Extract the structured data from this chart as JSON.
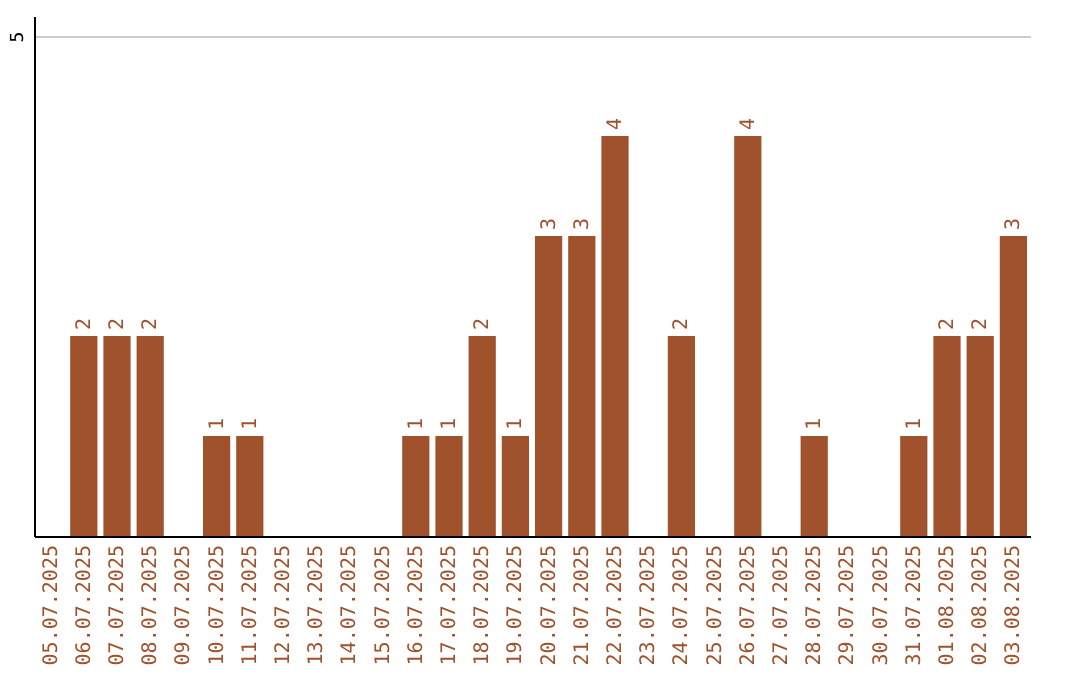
{
  "chart_data": {
    "type": "bar",
    "categories": [
      "05.07.2025",
      "06.07.2025",
      "07.07.2025",
      "08.07.2025",
      "09.07.2025",
      "10.07.2025",
      "11.07.2025",
      "12.07.2025",
      "13.07.2025",
      "14.07.2025",
      "15.07.2025",
      "16.07.2025",
      "17.07.2025",
      "18.07.2025",
      "19.07.2025",
      "20.07.2025",
      "21.07.2025",
      "22.07.2025",
      "23.07.2025",
      "24.07.2025",
      "25.07.2025",
      "26.07.2025",
      "27.07.2025",
      "28.07.2025",
      "29.07.2025",
      "30.07.2025",
      "31.07.2025",
      "01.08.2025",
      "02.08.2025",
      "03.08.2025"
    ],
    "values": [
      0,
      2,
      2,
      2,
      0,
      1,
      1,
      0,
      0,
      0,
      0,
      1,
      1,
      2,
      1,
      3,
      3,
      4,
      0,
      2,
      0,
      4,
      0,
      1,
      0,
      0,
      1,
      2,
      2,
      3
    ],
    "value_labels": [
      null,
      "2",
      "2",
      "2",
      null,
      "1",
      "1",
      null,
      null,
      null,
      null,
      "1",
      "1",
      "2",
      "1",
      "3",
      "3",
      "4",
      null,
      "2",
      null,
      "4",
      null,
      "1",
      null,
      null,
      "1",
      "2",
      "2",
      "3"
    ],
    "color": "#a0522d",
    "ylim": [
      0,
      5.2
    ],
    "yticks": [
      5
    ],
    "grid": "y"
  }
}
